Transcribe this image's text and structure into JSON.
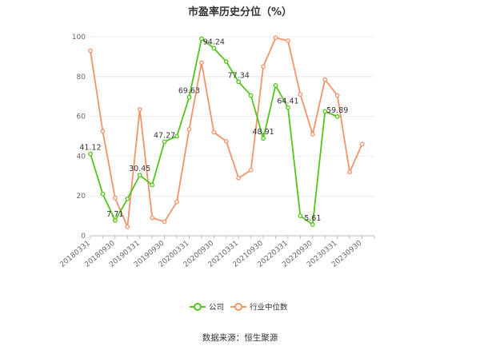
{
  "chart_data": {
    "type": "line",
    "title": "市盈率历史分位（%）",
    "x": [
      "20180331",
      "20180630",
      "20180930",
      "20181231",
      "20190331",
      "20190630",
      "20190930",
      "20191231",
      "20200331",
      "20200630",
      "20200930",
      "20201231",
      "20210331",
      "20210630",
      "20210930",
      "20211231",
      "20220331",
      "20220630",
      "20220930",
      "20221231",
      "20230331",
      "20230630",
      "20230930",
      "20231231"
    ],
    "x_tick_labels": [
      "20180331",
      "20180930",
      "20190331",
      "20190930",
      "20200331",
      "20200930",
      "20210331",
      "20210930",
      "20220331",
      "20220930",
      "20230331",
      "20230930"
    ],
    "series": [
      {
        "name": "公司",
        "color": "#52c41a",
        "values": [
          41.12,
          21,
          7.71,
          18.5,
          30.45,
          25.5,
          47.27,
          50,
          69.63,
          99,
          94.24,
          87.5,
          77.34,
          70.5,
          48.91,
          75.5,
          64.41,
          10,
          5.61,
          62.5,
          59.89,
          null,
          null,
          null
        ],
        "labels": {
          "0": "41.12",
          "2": "7.71",
          "4": "30.45",
          "6": "47.27",
          "8": "69.63",
          "10": "94.24",
          "12": "77.34",
          "14": "48.91",
          "16": "64.41",
          "18": "5.61",
          "20": "59.89"
        }
      },
      {
        "name": "行业中位数",
        "color": "#f0936b",
        "values": [
          93,
          52.5,
          19,
          4.5,
          63.5,
          9,
          7,
          17,
          53.5,
          87,
          52,
          47.5,
          29,
          33,
          85,
          99.5,
          98,
          71,
          51,
          78.5,
          70.5,
          32,
          46,
          null
        ]
      }
    ],
    "ylim": [
      0,
      100
    ],
    "y_ticks": [
      0,
      20,
      40,
      60,
      80,
      100
    ],
    "grid": true,
    "legend_position": "bottom-center"
  },
  "source_text": "数据来源：恒生聚源"
}
